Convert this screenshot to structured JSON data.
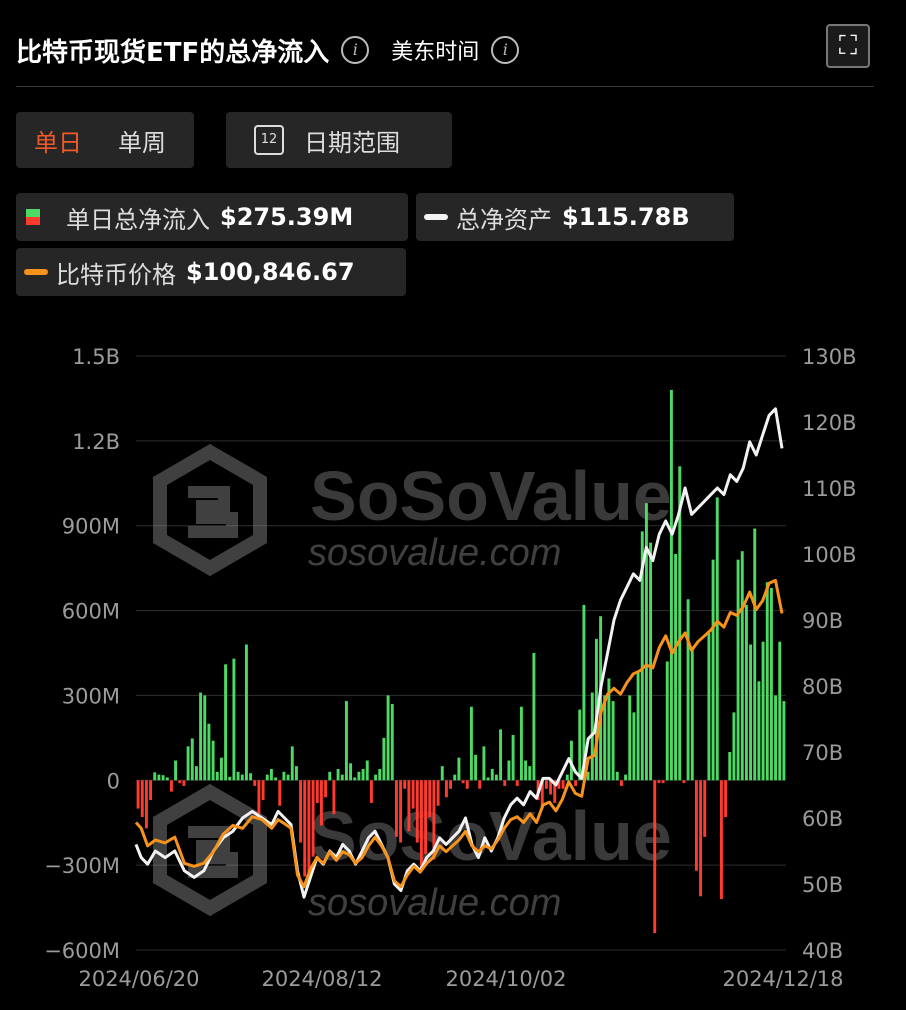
{
  "header": {
    "title": "比特币现货ETF的总净流入",
    "timezone": "美东时间"
  },
  "icons": {
    "info": "info-icon",
    "expand": "expand-icon",
    "calendar": "calendar-icon"
  },
  "toolbar": {
    "daily": "单日",
    "weekly": "单周",
    "date_range": "日期范围",
    "calendar_day": "12"
  },
  "legend": {
    "flow": {
      "name": "单日总净流入",
      "value": "$275.39M"
    },
    "assets": {
      "name": "总净资产",
      "value": "$115.78B"
    },
    "price": {
      "name": "比特币价格",
      "value": "$100,846.67"
    }
  },
  "watermark": {
    "brand": "SoSoValue",
    "url": "sosovalue.com"
  },
  "colors": {
    "inflow": "#4cd964",
    "outflow": "#ff3b30",
    "assets_line": "#f2f2f2",
    "price_line": "#f7931a",
    "accent": "#f05a28"
  },
  "chart_data": {
    "type": "bar+line",
    "x_labels": [
      "2024/06/20",
      "2024/08/12",
      "2024/10/02",
      "2024/12/18"
    ],
    "left_axis": {
      "ticks": [
        "1.5B",
        "1.2B",
        "900M",
        "600M",
        "300M",
        "0",
        "−300M",
        "−600M"
      ],
      "ylim": [
        -600,
        1500
      ],
      "unit": "M"
    },
    "right_axis": {
      "ticks": [
        "130B",
        "120B",
        "110B",
        "100B",
        "90B",
        "80B",
        "70B",
        "60B",
        "50B",
        "40B"
      ],
      "ylim": [
        40,
        130
      ],
      "unit": "B"
    },
    "series": [
      {
        "name": "单日总净流入",
        "type": "bar",
        "values": [
          -100,
          -130,
          -170,
          -70,
          28,
          20,
          18,
          10,
          -40,
          70,
          -10,
          -20,
          120,
          148,
          50,
          310,
          300,
          200,
          140,
          30,
          80,
          410,
          12,
          430,
          30,
          20,
          480,
          25,
          -20,
          -120,
          -70,
          20,
          40,
          10,
          -90,
          30,
          20,
          120,
          50,
          -220,
          -340,
          -350,
          -270,
          -80,
          -160,
          -60,
          30,
          -120,
          40,
          20,
          280,
          60,
          10,
          30,
          40,
          70,
          -80,
          20,
          40,
          150,
          300,
          270,
          -200,
          -220,
          -30,
          -180,
          -100,
          -220,
          -320,
          -260,
          -130,
          -280,
          -90,
          50,
          -60,
          -30,
          20,
          80,
          -10,
          -30,
          260,
          90,
          -30,
          120,
          10,
          40,
          20,
          180,
          -20,
          70,
          160,
          -20,
          260,
          70,
          50,
          450,
          -70,
          -100,
          -30,
          -50,
          -80,
          -30,
          -30,
          20,
          140,
          -20,
          250,
          620,
          30,
          310,
          500,
          580,
          300,
          360,
          280,
          30,
          -20,
          20,
          300,
          240,
          380,
          880,
          980,
          840,
          -540,
          -10,
          -10,
          420,
          1380,
          800,
          1110,
          -10,
          640,
          460,
          -320,
          -410,
          -200,
          520,
          780,
          1000,
          -420,
          -130,
          100,
          240,
          780,
          810,
          620,
          480,
          890,
          350,
          490,
          700,
          680,
          300,
          490,
          280
        ]
      },
      {
        "name": "总净资产",
        "type": "line",
        "unit": "B",
        "x": [
          0,
          0.008,
          0.018,
          0.03,
          0.045,
          0.06,
          0.075,
          0.09,
          0.105,
          0.12,
          0.135,
          0.15,
          0.165,
          0.18,
          0.195,
          0.21,
          0.22,
          0.23,
          0.24,
          0.25,
          0.26,
          0.27,
          0.28,
          0.29,
          0.3,
          0.31,
          0.32,
          0.33,
          0.34,
          0.35,
          0.36,
          0.37,
          0.38,
          0.39,
          0.4,
          0.41,
          0.42,
          0.43,
          0.44,
          0.45,
          0.46,
          0.47,
          0.48,
          0.49,
          0.5,
          0.51,
          0.52,
          0.53,
          0.54,
          0.55,
          0.56,
          0.57,
          0.58,
          0.59,
          0.6,
          0.61,
          0.62,
          0.63,
          0.64,
          0.65,
          0.66,
          0.67,
          0.68,
          0.69,
          0.7,
          0.71,
          0.72,
          0.73,
          0.74,
          0.75,
          0.76,
          0.77,
          0.78,
          0.79,
          0.8,
          0.81,
          0.82,
          0.83,
          0.84,
          0.85,
          0.86,
          0.87,
          0.88,
          0.89,
          0.9,
          0.91,
          0.92,
          0.93,
          0.94,
          0.95,
          0.96,
          0.97,
          0.98,
          0.99,
          1
        ],
        "y": [
          56,
          54,
          53,
          55,
          54,
          55,
          52,
          51,
          52,
          55,
          57,
          58,
          60,
          61,
          60,
          59,
          61,
          60,
          59,
          52,
          48,
          51,
          54,
          53,
          55,
          54,
          56,
          55,
          53,
          55,
          57,
          58,
          56,
          54,
          50,
          49,
          52,
          53,
          52,
          54,
          55,
          57,
          56,
          57,
          58,
          60,
          56,
          54,
          57,
          55,
          57,
          60,
          62,
          63,
          62,
          64,
          63,
          66,
          66,
          65,
          67,
          69,
          67,
          66,
          72,
          73,
          80,
          85,
          90,
          93,
          95,
          97,
          96,
          101,
          99,
          103,
          105,
          103,
          106,
          110,
          106,
          107,
          108,
          109,
          110,
          109,
          112,
          111,
          113,
          117,
          115,
          118,
          121,
          122,
          116
        ]
      },
      {
        "name": "比特币价格",
        "type": "line",
        "unit": "USD",
        "x": [
          0,
          0.008,
          0.018,
          0.03,
          0.045,
          0.06,
          0.075,
          0.09,
          0.105,
          0.12,
          0.135,
          0.15,
          0.165,
          0.18,
          0.195,
          0.21,
          0.22,
          0.23,
          0.24,
          0.25,
          0.26,
          0.27,
          0.28,
          0.29,
          0.3,
          0.31,
          0.32,
          0.33,
          0.34,
          0.35,
          0.36,
          0.37,
          0.38,
          0.39,
          0.4,
          0.41,
          0.42,
          0.43,
          0.44,
          0.45,
          0.46,
          0.47,
          0.48,
          0.49,
          0.5,
          0.51,
          0.52,
          0.53,
          0.54,
          0.55,
          0.56,
          0.57,
          0.58,
          0.59,
          0.6,
          0.61,
          0.62,
          0.63,
          0.64,
          0.65,
          0.66,
          0.67,
          0.68,
          0.69,
          0.7,
          0.71,
          0.72,
          0.73,
          0.74,
          0.75,
          0.76,
          0.77,
          0.78,
          0.79,
          0.8,
          0.81,
          0.82,
          0.83,
          0.84,
          0.85,
          0.86,
          0.87,
          0.88,
          0.89,
          0.9,
          0.91,
          0.92,
          0.93,
          0.94,
          0.95,
          0.96,
          0.97,
          0.98,
          0.99,
          1
        ],
        "y": [
          65000,
          64000,
          61000,
          62000,
          61500,
          62500,
          58000,
          57500,
          58000,
          60000,
          63000,
          64500,
          64000,
          66000,
          65500,
          64000,
          65500,
          64800,
          64000,
          56000,
          54000,
          57000,
          59000,
          58000,
          60000,
          58500,
          60000,
          59500,
          58000,
          59000,
          61000,
          62500,
          61000,
          59000,
          55000,
          54000,
          56000,
          57500,
          56500,
          58000,
          59000,
          61000,
          60000,
          61000,
          62000,
          63500,
          61000,
          60000,
          61000,
          60500,
          62000,
          64000,
          65500,
          66000,
          65000,
          66500,
          65000,
          68000,
          68500,
          67000,
          69000,
          72000,
          70000,
          69500,
          76000,
          76500,
          84000,
          87000,
          88000,
          87000,
          89000,
          90500,
          91000,
          92000,
          91500,
          95000,
          97000,
          94000,
          96000,
          97500,
          94500,
          96000,
          97000,
          98000,
          99500,
          98500,
          101000,
          100500,
          102000,
          104500,
          101500,
          103000,
          106000,
          106500,
          100846.67
        ]
      }
    ],
    "legend": "top-left",
    "grid": true
  }
}
